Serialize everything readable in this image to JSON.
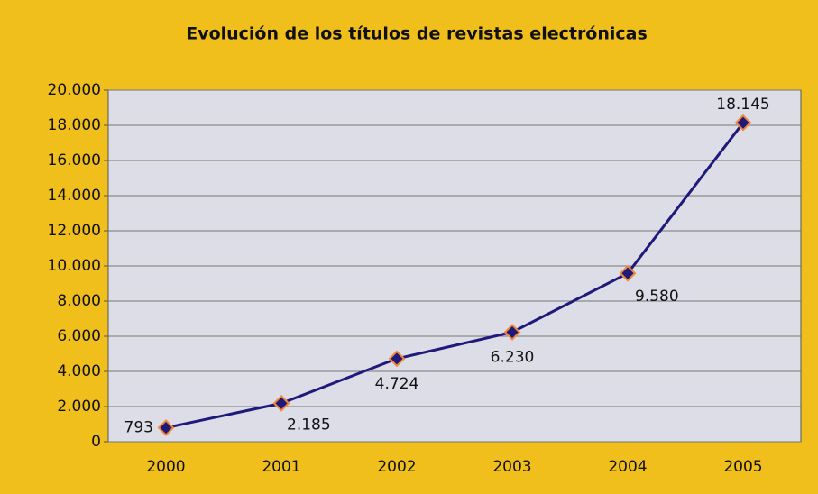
{
  "chart_data": {
    "type": "line",
    "title": "Evolución de los títulos de revistas electrónicas",
    "categories": [
      "2000",
      "2001",
      "2002",
      "2003",
      "2004",
      "2005"
    ],
    "series": [
      {
        "color": "#1f1a7a",
        "values": [
          793,
          2185,
          4724,
          6230,
          9580,
          18145
        ],
        "value_labels": [
          "793",
          "2.185",
          "4.724",
          "6.230",
          "9.580",
          "18.145"
        ]
      }
    ],
    "ylim": [
      0,
      20000
    ],
    "yticks": [
      0,
      {
        "value": 2000,
        "label": "2.000"
      },
      {
        "value": 4000,
        "label": "4.000"
      },
      {
        "value": 6000,
        "label": "6.000"
      },
      {
        "value": 8000,
        "label": "8.000"
      },
      {
        "value": 10000,
        "label": "10.000"
      },
      {
        "value": 12000,
        "label": "12.000"
      },
      {
        "value": 14000,
        "label": "14.000"
      },
      {
        "value": 16000,
        "label": "16.000"
      },
      {
        "value": 18000,
        "label": "18.000"
      },
      {
        "value": 20000,
        "label": "20.000"
      }
    ],
    "grid": true
  }
}
